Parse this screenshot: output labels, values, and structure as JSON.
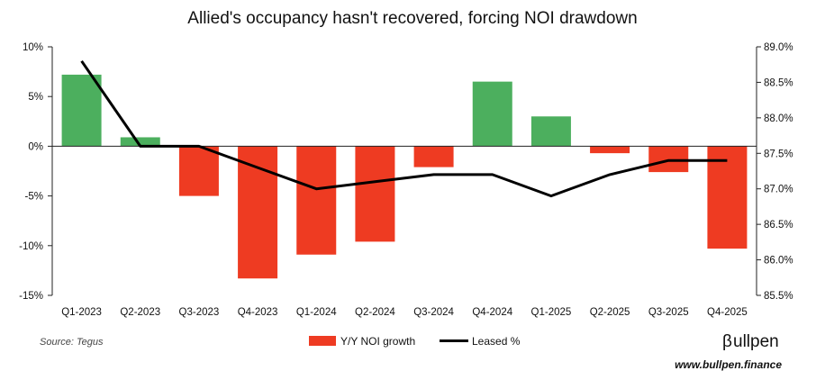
{
  "chart_data": {
    "type": "bar+line",
    "title": "Allied's occupancy hasn't recovered, forcing NOI drawdown",
    "categories": [
      "Q1-2023",
      "Q2-2023",
      "Q3-2023",
      "Q4-2023",
      "Q1-2024",
      "Q2-2024",
      "Q3-2024",
      "Q4-2024",
      "Q1-2025",
      "Q2-2025",
      "Q3-2025",
      "Q4-2025"
    ],
    "series": [
      {
        "name": "Y/Y NOI growth",
        "type": "bar",
        "axis": "left",
        "unit": "%",
        "values": [
          7.2,
          0.9,
          -5.0,
          -13.3,
          -10.9,
          -9.6,
          -2.1,
          6.5,
          3.0,
          -0.7,
          -2.6,
          -10.3
        ]
      },
      {
        "name": "Leased %",
        "type": "line",
        "axis": "right",
        "unit": "%",
        "values": [
          88.8,
          87.6,
          87.6,
          87.3,
          87.0,
          87.1,
          87.2,
          87.2,
          86.9,
          87.2,
          87.4,
          87.4
        ]
      }
    ],
    "y_left": {
      "min": -15,
      "max": 10,
      "ticks": [
        10,
        5,
        0,
        -5,
        -10,
        -15
      ],
      "tick_labels": [
        "10%",
        "5%",
        "0%",
        "-5%",
        "-10%",
        "-15%"
      ]
    },
    "y_right": {
      "min": 85.5,
      "max": 89.0,
      "ticks": [
        89.0,
        88.5,
        88.0,
        87.5,
        87.0,
        86.5,
        86.0,
        85.5
      ],
      "tick_labels": [
        "89.0%",
        "88.5%",
        "88.0%",
        "87.5%",
        "87.0%",
        "86.5%",
        "86.0%",
        "85.5%"
      ]
    },
    "colors": {
      "positive_bar": "#4caf5e",
      "negative_bar": "#ee3b22",
      "line": "#000000",
      "axis": "#222222"
    },
    "legend": {
      "position": "bottom-center",
      "entries": [
        "Y/Y NOI growth",
        "Leased %"
      ]
    },
    "source": "Source: Tegus"
  },
  "branding": {
    "name": "ullpen",
    "logo_glyph": "β",
    "url": "www.bullpen.finance"
  }
}
